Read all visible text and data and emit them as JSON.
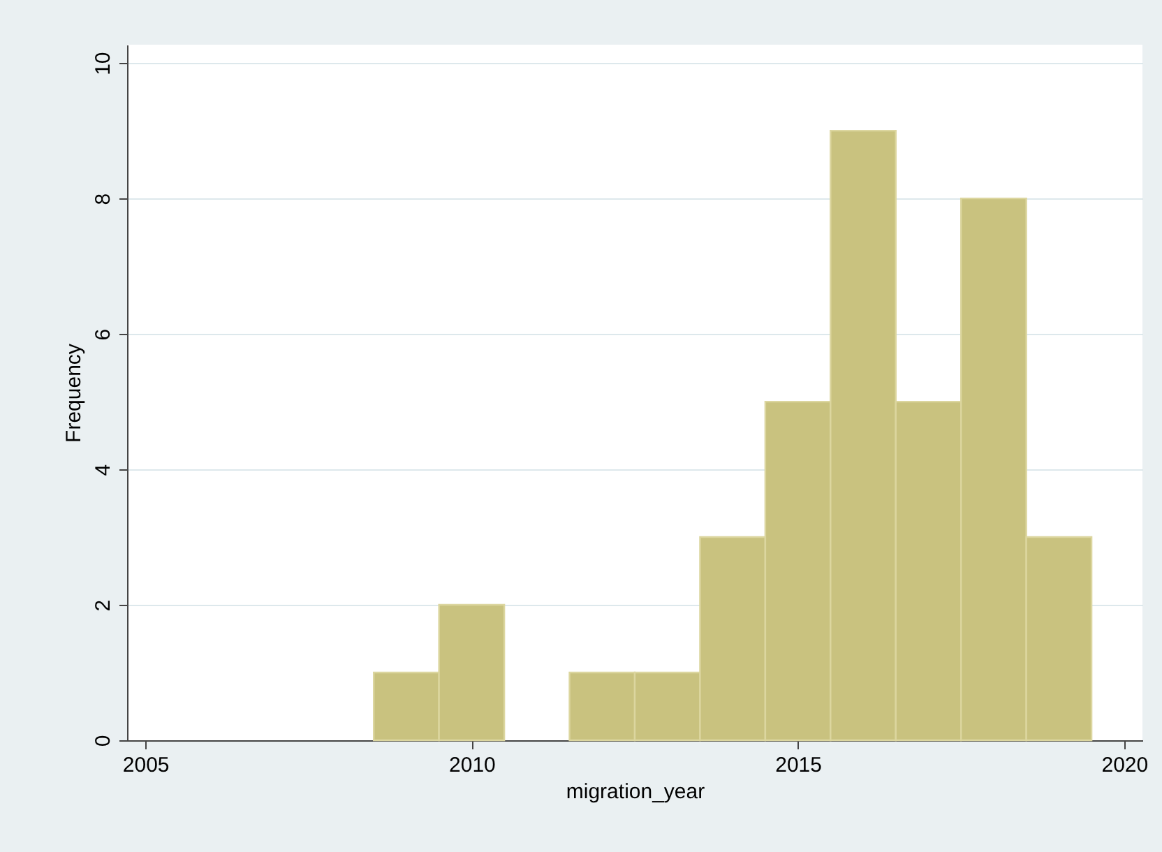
{
  "chart_data": {
    "type": "histogram",
    "xlabel": "migration_year",
    "ylabel": "Frequency",
    "bins": [
      2008.5,
      2009.5,
      2010.5,
      2011.5,
      2012.5,
      2013.5,
      2014.5,
      2015.5,
      2016.5,
      2017.5,
      2018.5,
      2019.5
    ],
    "values": [
      1,
      2,
      0,
      1,
      1,
      3,
      5,
      9,
      5,
      8,
      3
    ],
    "color": "#c9c27f",
    "xlim": [
      2004.72,
      2020.28
    ],
    "xticks": [
      2005,
      2010,
      2015,
      2020
    ],
    "ylim": [
      0,
      10.27
    ],
    "yticks": [
      0,
      2,
      4,
      6,
      8,
      10
    ],
    "grid": "y"
  }
}
